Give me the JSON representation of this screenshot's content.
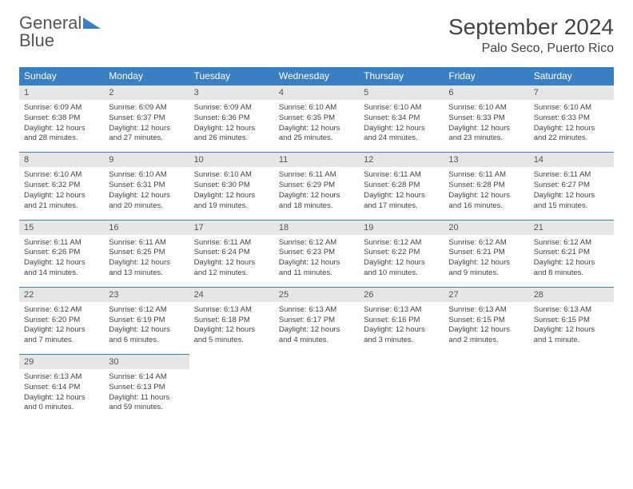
{
  "brand": {
    "word1": "General",
    "word2": "Blue"
  },
  "title": "September 2024",
  "location": "Palo Seco, Puerto Rico",
  "colors": {
    "header_bg": "#3a7fc4",
    "header_fg": "#ffffff",
    "daynum_bg": "#e6e6e6",
    "text": "#444444",
    "page_bg": "#ffffff"
  },
  "day_names": [
    "Sunday",
    "Monday",
    "Tuesday",
    "Wednesday",
    "Thursday",
    "Friday",
    "Saturday"
  ],
  "weeks": [
    [
      {
        "n": "1",
        "sr": "6:09 AM",
        "ss": "6:38 PM",
        "dl": "12 hours and 28 minutes."
      },
      {
        "n": "2",
        "sr": "6:09 AM",
        "ss": "6:37 PM",
        "dl": "12 hours and 27 minutes."
      },
      {
        "n": "3",
        "sr": "6:09 AM",
        "ss": "6:36 PM",
        "dl": "12 hours and 26 minutes."
      },
      {
        "n": "4",
        "sr": "6:10 AM",
        "ss": "6:35 PM",
        "dl": "12 hours and 25 minutes."
      },
      {
        "n": "5",
        "sr": "6:10 AM",
        "ss": "6:34 PM",
        "dl": "12 hours and 24 minutes."
      },
      {
        "n": "6",
        "sr": "6:10 AM",
        "ss": "6:33 PM",
        "dl": "12 hours and 23 minutes."
      },
      {
        "n": "7",
        "sr": "6:10 AM",
        "ss": "6:33 PM",
        "dl": "12 hours and 22 minutes."
      }
    ],
    [
      {
        "n": "8",
        "sr": "6:10 AM",
        "ss": "6:32 PM",
        "dl": "12 hours and 21 minutes."
      },
      {
        "n": "9",
        "sr": "6:10 AM",
        "ss": "6:31 PM",
        "dl": "12 hours and 20 minutes."
      },
      {
        "n": "10",
        "sr": "6:10 AM",
        "ss": "6:30 PM",
        "dl": "12 hours and 19 minutes."
      },
      {
        "n": "11",
        "sr": "6:11 AM",
        "ss": "6:29 PM",
        "dl": "12 hours and 18 minutes."
      },
      {
        "n": "12",
        "sr": "6:11 AM",
        "ss": "6:28 PM",
        "dl": "12 hours and 17 minutes."
      },
      {
        "n": "13",
        "sr": "6:11 AM",
        "ss": "6:28 PM",
        "dl": "12 hours and 16 minutes."
      },
      {
        "n": "14",
        "sr": "6:11 AM",
        "ss": "6:27 PM",
        "dl": "12 hours and 15 minutes."
      }
    ],
    [
      {
        "n": "15",
        "sr": "6:11 AM",
        "ss": "6:26 PM",
        "dl": "12 hours and 14 minutes."
      },
      {
        "n": "16",
        "sr": "6:11 AM",
        "ss": "6:25 PM",
        "dl": "12 hours and 13 minutes."
      },
      {
        "n": "17",
        "sr": "6:11 AM",
        "ss": "6:24 PM",
        "dl": "12 hours and 12 minutes."
      },
      {
        "n": "18",
        "sr": "6:12 AM",
        "ss": "6:23 PM",
        "dl": "12 hours and 11 minutes."
      },
      {
        "n": "19",
        "sr": "6:12 AM",
        "ss": "6:22 PM",
        "dl": "12 hours and 10 minutes."
      },
      {
        "n": "20",
        "sr": "6:12 AM",
        "ss": "6:21 PM",
        "dl": "12 hours and 9 minutes."
      },
      {
        "n": "21",
        "sr": "6:12 AM",
        "ss": "6:21 PM",
        "dl": "12 hours and 8 minutes."
      }
    ],
    [
      {
        "n": "22",
        "sr": "6:12 AM",
        "ss": "6:20 PM",
        "dl": "12 hours and 7 minutes."
      },
      {
        "n": "23",
        "sr": "6:12 AM",
        "ss": "6:19 PM",
        "dl": "12 hours and 6 minutes."
      },
      {
        "n": "24",
        "sr": "6:13 AM",
        "ss": "6:18 PM",
        "dl": "12 hours and 5 minutes."
      },
      {
        "n": "25",
        "sr": "6:13 AM",
        "ss": "6:17 PM",
        "dl": "12 hours and 4 minutes."
      },
      {
        "n": "26",
        "sr": "6:13 AM",
        "ss": "6:16 PM",
        "dl": "12 hours and 3 minutes."
      },
      {
        "n": "27",
        "sr": "6:13 AM",
        "ss": "6:15 PM",
        "dl": "12 hours and 2 minutes."
      },
      {
        "n": "28",
        "sr": "6:13 AM",
        "ss": "6:15 PM",
        "dl": "12 hours and 1 minute."
      }
    ],
    [
      {
        "n": "29",
        "sr": "6:13 AM",
        "ss": "6:14 PM",
        "dl": "12 hours and 0 minutes."
      },
      {
        "n": "30",
        "sr": "6:14 AM",
        "ss": "6:13 PM",
        "dl": "11 hours and 59 minutes."
      },
      null,
      null,
      null,
      null,
      null
    ]
  ],
  "labels": {
    "sunrise": "Sunrise: ",
    "sunset": "Sunset: ",
    "daylight": "Daylight: "
  }
}
